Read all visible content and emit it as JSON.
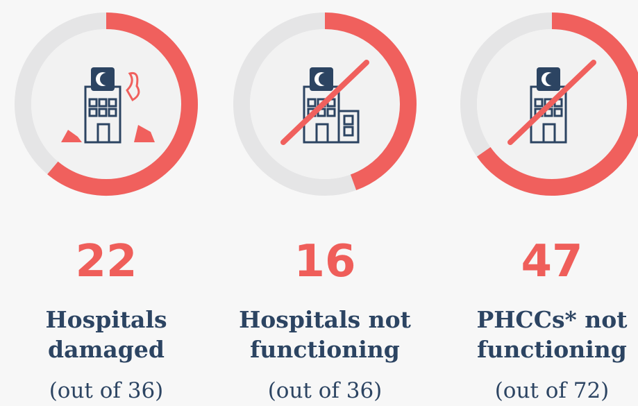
{
  "chart_data": [
    {
      "type": "donut",
      "values": [
        22
      ],
      "total": 36,
      "label_lines": [
        "Hospitals",
        "damaged"
      ],
      "total_label": "(out of 36)",
      "color": "#f0605d",
      "track_color": "#e5e5e6"
    },
    {
      "type": "donut",
      "values": [
        16
      ],
      "total": 36,
      "label_lines": [
        "Hospitals not",
        "functioning"
      ],
      "total_label": "(out of 36)",
      "color": "#f0605d",
      "track_color": "#e5e5e6"
    },
    {
      "type": "donut",
      "values": [
        47
      ],
      "total": 72,
      "label_lines": [
        "PHCCs* not",
        "functioning"
      ],
      "total_label": "(out of 72)",
      "color": "#f0605d",
      "track_color": "#e5e5e6"
    }
  ]
}
